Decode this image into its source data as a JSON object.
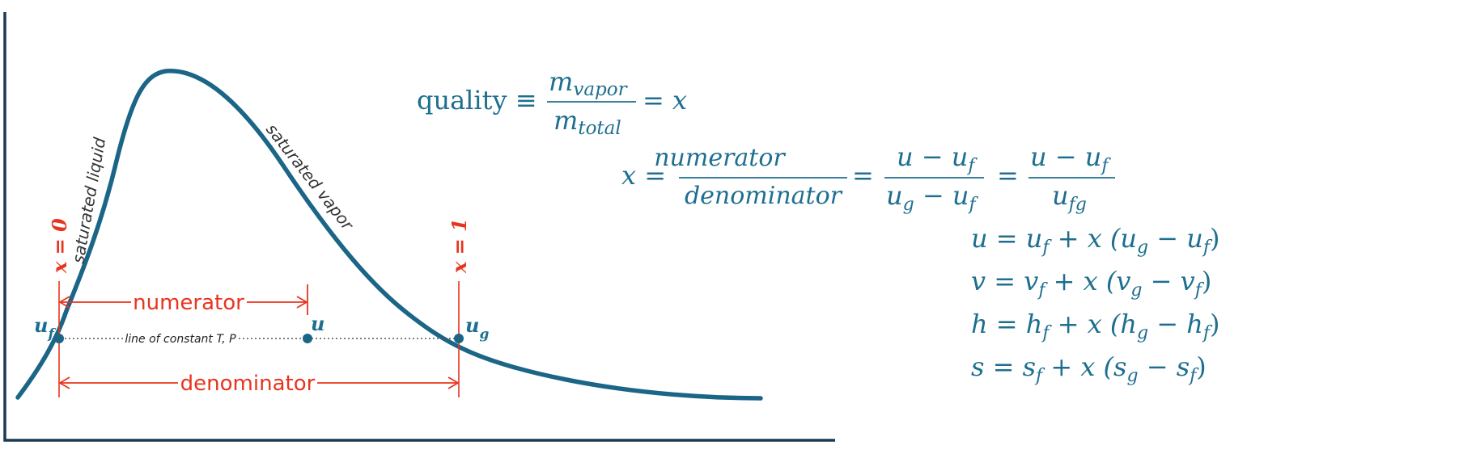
{
  "colors": {
    "curve": "#1b6587",
    "axis": "#1a3a56",
    "annotation": "#e8341f",
    "equation": "#1e6f8f",
    "dotted_line": "#555555"
  },
  "curve_labels": {
    "liquid": "saturated liquid",
    "vapor": "saturated vapor"
  },
  "markers": {
    "x0": "x = 0",
    "x1": "x = 1"
  },
  "points": {
    "uf_base": "u",
    "uf_sub": "f",
    "u": "u",
    "ug_base": "u",
    "ug_sub": "g"
  },
  "line_label": "line of constant T, P",
  "dimensions": {
    "numerator": "numerator",
    "denominator": "denominator"
  },
  "equations": {
    "quality": {
      "lhs": "quality ≡",
      "num_base": "m",
      "num_sub": "vapor",
      "den_base": "m",
      "den_sub": "total",
      "rhs": "= x"
    },
    "x_def": {
      "lhs": "x =",
      "frac1_num": "numerator",
      "frac1_den": "denominator",
      "eq1": "=",
      "frac2_num_a": "u − u",
      "frac2_num_sub": "f",
      "frac2_den_a": "u",
      "frac2_den_sub1": "g",
      "frac2_den_b": " − u",
      "frac2_den_sub2": "f",
      "eq2": "=",
      "frac3_num_a": "u − u",
      "frac3_num_sub": "f",
      "frac3_den_a": "u",
      "frac3_den_sub": "fg"
    },
    "props": [
      {
        "p": "u",
        "f": "f",
        "g": "g"
      },
      {
        "p": "v",
        "f": "f",
        "g": "g"
      },
      {
        "p": "h",
        "f": "f",
        "g": "g"
      },
      {
        "p": "s",
        "f": "f",
        "g": "g"
      }
    ]
  }
}
